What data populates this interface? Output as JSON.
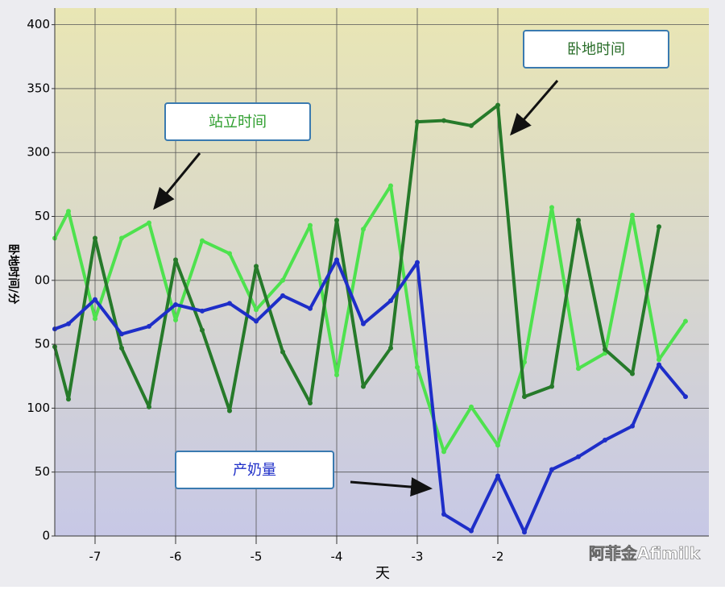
{
  "chart_data": {
    "type": "line",
    "y_label": "卧地时间/分",
    "x_label": "天",
    "x": [
      -7.5,
      -7.33,
      -7,
      -6.67,
      -6.33,
      -6,
      -5.67,
      -5.33,
      -5,
      -4.67,
      -4.33,
      -4,
      -3.67,
      -3.33,
      -3,
      -2.67,
      -2.33,
      -2,
      -1.67,
      -1.33,
      -1,
      -0.67,
      -0.33,
      0,
      0.33
    ],
    "series": [
      {
        "name": "站立时间",
        "color": "#4ee24e",
        "values": [
          233,
          254,
          170,
          233,
          245,
          169,
          231,
          221,
          177,
          200,
          243,
          126,
          240,
          274,
          132,
          66,
          101,
          71,
          136,
          257,
          131,
          143,
          251,
          138,
          168
        ]
      },
      {
        "name": "卧地时间",
        "color": "#267a2a",
        "values": [
          148,
          107,
          233,
          147,
          101,
          216,
          161,
          98,
          211,
          144,
          104,
          247,
          117,
          147,
          324,
          325,
          321,
          337,
          109,
          117,
          247,
          146,
          127,
          242,
          null
        ]
      },
      {
        "name": "产奶量",
        "color": "#1e2ec8",
        "values": [
          162,
          166,
          185,
          158,
          164,
          181,
          176,
          182,
          168,
          188,
          178,
          216,
          166,
          184,
          214,
          17,
          4,
          47,
          3,
          52,
          62,
          75,
          86,
          134,
          109
        ]
      }
    ],
    "xlim": [
      -7.5,
      0.62
    ],
    "xticks": [
      -7,
      -6,
      -5,
      -4,
      -3,
      -2
    ],
    "ylim": [
      0,
      413
    ],
    "yticks": [
      0,
      50,
      100,
      {
        "value": 150,
        "label": "50"
      },
      {
        "value": 200,
        "label": "00"
      },
      {
        "value": 250,
        "label": "50"
      },
      300,
      350,
      400
    ],
    "grid": true,
    "watermark": "阿菲金Afimilk"
  }
}
